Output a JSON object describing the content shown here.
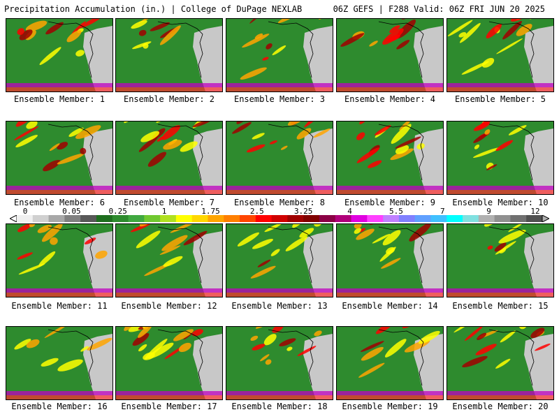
{
  "header": {
    "left": "Precipitation Accumulation (in.) | College of DuPage NEXLAB",
    "right": "06Z GEFS | F288 Valid: 06Z FRI JUN 20 2025"
  },
  "members": [
    "Ensemble Member: 1",
    "Ensemble Member: 2",
    "Ensemble Member: 3",
    "Ensemble Member: 4",
    "Ensemble Member: 5",
    "Ensemble Member: 6",
    "Ensemble Member: 7",
    "Ensemble Member: 8",
    "Ensemble Member: 9",
    "Ensemble Member: 10",
    "Ensemble Member: 11",
    "Ensemble Member: 12",
    "Ensemble Member: 13",
    "Ensemble Member: 14",
    "Ensemble Member: 15",
    "Ensemble Member: 16",
    "Ensemble Member: 17",
    "Ensemble Member: 18",
    "Ensemble Member: 19",
    "Ensemble Member: 20"
  ],
  "colorbar": {
    "tick_labels": [
      "0",
      "0.05",
      "0.25",
      "1",
      "1.75",
      "2.5",
      "3.25",
      "4",
      "5.5",
      "7",
      "9",
      "12"
    ],
    "colors": [
      "#f0f0f0",
      "#d0d0d0",
      "#a8a8a8",
      "#808080",
      "#585858",
      "#1e6e1e",
      "#2e8b2e",
      "#40a840",
      "#70c830",
      "#b0e020",
      "#ffff00",
      "#ffd700",
      "#ffa500",
      "#ff7f00",
      "#ff4500",
      "#ff0000",
      "#d00000",
      "#a00000",
      "#800000",
      "#8b0045",
      "#b0007a",
      "#e000e0",
      "#ff40ff",
      "#c080ff",
      "#8080ff",
      "#60a0ff",
      "#40c0ff",
      "#00ffff",
      "#80e0e0",
      "#b0b0b0",
      "#909090",
      "#707070",
      "#505050"
    ]
  },
  "map": {
    "ocean_green": "#2e8b2e",
    "land_gray": "#c8c8c8",
    "rain_colors": [
      "#ffff00",
      "#ffa500",
      "#ff0000",
      "#a00000",
      "#e000e0",
      "#8080ff"
    ]
  }
}
